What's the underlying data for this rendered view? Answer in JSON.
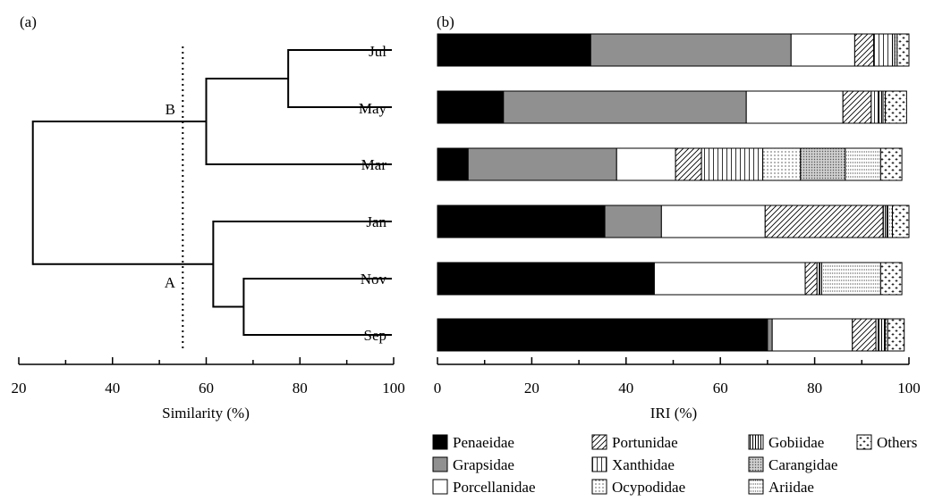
{
  "chart_data": [
    {
      "type": "dendrogram",
      "panel_label": "(a)",
      "xlabel": "Similarity (%)",
      "xlim": [
        20,
        100
      ],
      "xticks": [
        20,
        40,
        60,
        80,
        100
      ],
      "leaves": [
        "Jul",
        "May",
        "Mar",
        "Jan",
        "Nov",
        "Sep"
      ],
      "merges": [
        {
          "id": "JulMay",
          "left": "Jul",
          "right": "May",
          "similarity": 77.5
        },
        {
          "id": "B",
          "left": "JulMay",
          "right": "Mar",
          "similarity": 60
        },
        {
          "id": "NovSep",
          "left": "Nov",
          "right": "Sep",
          "similarity": 68
        },
        {
          "id": "A",
          "left": "Jan",
          "right": "NovSep",
          "similarity": 61.5
        },
        {
          "id": "root",
          "left": "B",
          "right": "A",
          "similarity": 23
        }
      ],
      "cluster_labels": [
        {
          "text": "B",
          "node": "B"
        },
        {
          "text": "A",
          "node": "A"
        }
      ],
      "cutoff_similarity": 55
    },
    {
      "type": "bar",
      "orientation": "horizontal",
      "stacked": true,
      "panel_label": "(b)",
      "xlabel": "IRI (%)",
      "xlim": [
        0,
        100
      ],
      "xticks": [
        0,
        20,
        40,
        60,
        80,
        100
      ],
      "categories": [
        "Jul",
        "May",
        "Mar",
        "Jan",
        "Nov",
        "Sep"
      ],
      "series": [
        {
          "name": "Penaeidae",
          "pattern": "solid-black",
          "values": [
            32.5,
            14,
            6.5,
            35.5,
            46,
            70
          ]
        },
        {
          "name": "Grapsidae",
          "pattern": "solid-gray",
          "values": [
            42.5,
            51.5,
            31.5,
            12,
            0,
            1
          ]
        },
        {
          "name": "Porcellanidae",
          "pattern": "white",
          "values": [
            13.5,
            20.5,
            12.5,
            22,
            32,
            17
          ]
        },
        {
          "name": "Portunidae",
          "pattern": "diagonal-lines",
          "values": [
            4,
            6,
            5.5,
            25,
            2.5,
            5
          ]
        },
        {
          "name": "Xanthidae",
          "pattern": "vertical-lines",
          "values": [
            4,
            1.5,
            13,
            0.5,
            0.5,
            0.5
          ]
        },
        {
          "name": "Ocypodidae",
          "pattern": "dots",
          "values": [
            0,
            0,
            8,
            0,
            0,
            0
          ]
        },
        {
          "name": "Gobiidae",
          "pattern": "dense-vertical",
          "values": [
            0.5,
            1,
            0,
            0.5,
            0.5,
            1.5
          ]
        },
        {
          "name": "Carangidae",
          "pattern": "cross-hatch",
          "values": [
            0,
            0,
            9.5,
            0,
            0,
            0
          ]
        },
        {
          "name": "Ariidae",
          "pattern": "grid-dots",
          "values": [
            0.5,
            0.5,
            7.5,
            1,
            12.5,
            0.5
          ]
        },
        {
          "name": "Others",
          "pattern": "plus",
          "values": [
            2.5,
            4.5,
            4.5,
            3.5,
            4.5,
            3.5
          ]
        }
      ],
      "legend_placement": "bottom"
    }
  ]
}
